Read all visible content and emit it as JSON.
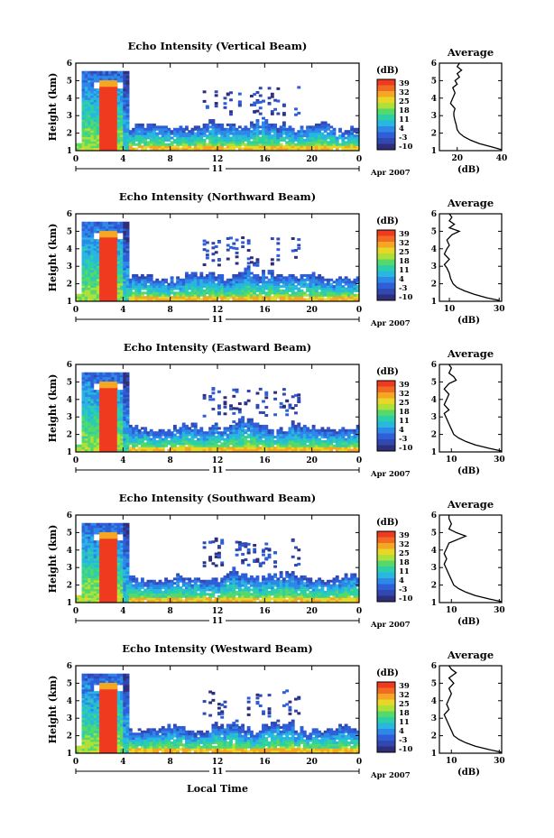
{
  "xlabel": "Local Time",
  "colorbar_unit": "(dB)",
  "colorbar_ticks": [
    "39",
    "32",
    "25",
    "18",
    "11",
    "4",
    "-3",
    "-10"
  ],
  "colorbar_colors": [
    "#f03a20",
    "#f26b22",
    "#f5a623",
    "#e8d727",
    "#aee03a",
    "#55d96a",
    "#2ccfa8",
    "#27b7e0",
    "#2e88e8",
    "#2f5fd8",
    "#3048b0",
    "#2e2e7a"
  ],
  "date_tick": "11",
  "date_label": "Apr 2007",
  "chart_data": [
    {
      "type": "heatmap",
      "title": "Echo Intensity (Vertical Beam)",
      "ylabel": "Height (km)",
      "x_ticks": [
        "0",
        "4",
        "8",
        "12",
        "16",
        "20",
        "0"
      ],
      "y_ticks": [
        "1",
        "2",
        "3",
        "4",
        "5",
        "6"
      ],
      "xlim": [
        0,
        24
      ],
      "ylim": [
        1,
        6
      ],
      "colorbar": {
        "range": [
          -10,
          39
        ]
      },
      "average_profile": {
        "title": "Average",
        "xlabel": "(dB)",
        "x_ticks": [
          "20",
          "40"
        ],
        "xlim": [
          12,
          40
        ],
        "y_ticks": [
          "1",
          "2",
          "3",
          "4",
          "5",
          "6"
        ],
        "profile": [
          [
            40,
            1.05
          ],
          [
            36,
            1.2
          ],
          [
            30,
            1.4
          ],
          [
            26,
            1.6
          ],
          [
            23,
            1.8
          ],
          [
            21,
            2.0
          ],
          [
            20,
            2.2
          ],
          [
            19.5,
            2.5
          ],
          [
            19,
            2.7
          ],
          [
            18.5,
            3.0
          ],
          [
            18.5,
            3.2
          ],
          [
            19,
            3.4
          ],
          [
            17,
            3.7
          ],
          [
            18,
            4.0
          ],
          [
            19,
            4.3
          ],
          [
            18,
            4.6
          ],
          [
            20,
            4.8
          ],
          [
            19,
            5.0
          ],
          [
            21,
            5.2
          ],
          [
            20,
            5.4
          ],
          [
            22,
            5.6
          ],
          [
            20,
            5.8
          ],
          [
            21,
            6.0
          ]
        ]
      }
    },
    {
      "type": "heatmap",
      "title": "Echo Intensity (Northward Beam)",
      "ylabel": "Height (km)",
      "x_ticks": [
        "0",
        "4",
        "8",
        "12",
        "16",
        "20",
        "0"
      ],
      "y_ticks": [
        "1",
        "2",
        "3",
        "4",
        "5",
        "6"
      ],
      "xlim": [
        0,
        24
      ],
      "ylim": [
        1,
        6
      ],
      "colorbar": {
        "range": [
          -10,
          39
        ]
      },
      "average_profile": {
        "title": "Average",
        "xlabel": "(dB)",
        "x_ticks": [
          "10",
          "30"
        ],
        "xlim": [
          6,
          31
        ],
        "y_ticks": [
          "1",
          "2",
          "3",
          "4",
          "5",
          "6"
        ],
        "profile": [
          [
            30,
            1.05
          ],
          [
            25,
            1.2
          ],
          [
            20,
            1.4
          ],
          [
            16,
            1.6
          ],
          [
            13,
            1.8
          ],
          [
            11.5,
            2.0
          ],
          [
            10.5,
            2.3
          ],
          [
            10,
            2.6
          ],
          [
            9,
            2.9
          ],
          [
            8,
            3.1
          ],
          [
            10,
            3.4
          ],
          [
            8,
            3.7
          ],
          [
            9,
            4.0
          ],
          [
            10,
            4.2
          ],
          [
            9,
            4.5
          ],
          [
            11,
            4.8
          ],
          [
            14,
            5.0
          ],
          [
            10,
            5.2
          ],
          [
            12,
            5.4
          ],
          [
            10,
            5.6
          ],
          [
            11,
            5.8
          ],
          [
            10,
            6.0
          ]
        ]
      }
    },
    {
      "type": "heatmap",
      "title": "Echo Intensity (Eastward Beam)",
      "ylabel": "Height (km)",
      "x_ticks": [
        "0",
        "4",
        "8",
        "12",
        "16",
        "20",
        "0"
      ],
      "y_ticks": [
        "1",
        "2",
        "3",
        "4",
        "5",
        "6"
      ],
      "xlim": [
        0,
        24
      ],
      "ylim": [
        1,
        6
      ],
      "colorbar": {
        "range": [
          -10,
          39
        ]
      },
      "average_profile": {
        "title": "Average",
        "xlabel": "(dB)",
        "x_ticks": [
          "10",
          "30"
        ],
        "xlim": [
          5,
          31
        ],
        "y_ticks": [
          "1",
          "2",
          "3",
          "4",
          "5",
          "6"
        ],
        "profile": [
          [
            31,
            1.05
          ],
          [
            26,
            1.2
          ],
          [
            20,
            1.4
          ],
          [
            16,
            1.6
          ],
          [
            13,
            1.8
          ],
          [
            11,
            2.0
          ],
          [
            10,
            2.3
          ],
          [
            9,
            2.6
          ],
          [
            8,
            2.9
          ],
          [
            7,
            3.2
          ],
          [
            9,
            3.4
          ],
          [
            7,
            3.7
          ],
          [
            8,
            4.0
          ],
          [
            9,
            4.3
          ],
          [
            7,
            4.6
          ],
          [
            9,
            4.9
          ],
          [
            12,
            5.1
          ],
          [
            11,
            5.3
          ],
          [
            9,
            5.5
          ],
          [
            10,
            5.8
          ],
          [
            9,
            6.0
          ]
        ]
      }
    },
    {
      "type": "heatmap",
      "title": "Echo Intensity (Southward Beam)",
      "ylabel": "Height (km)",
      "x_ticks": [
        "0",
        "4",
        "8",
        "12",
        "16",
        "20",
        "0"
      ],
      "y_ticks": [
        "1",
        "2",
        "3",
        "4",
        "5",
        "6"
      ],
      "xlim": [
        0,
        24
      ],
      "ylim": [
        1,
        6
      ],
      "colorbar": {
        "range": [
          -10,
          39
        ]
      },
      "average_profile": {
        "title": "Average",
        "xlabel": "(dB)",
        "x_ticks": [
          "10",
          "30"
        ],
        "xlim": [
          5,
          31
        ],
        "y_ticks": [
          "1",
          "2",
          "3",
          "4",
          "5",
          "6"
        ],
        "profile": [
          [
            31,
            1.05
          ],
          [
            26,
            1.2
          ],
          [
            20,
            1.4
          ],
          [
            16,
            1.6
          ],
          [
            13,
            1.8
          ],
          [
            11,
            2.0
          ],
          [
            10,
            2.3
          ],
          [
            9,
            2.6
          ],
          [
            8,
            2.9
          ],
          [
            7,
            3.2
          ],
          [
            8,
            3.5
          ],
          [
            7,
            3.8
          ],
          [
            8,
            4.1
          ],
          [
            9,
            4.4
          ],
          [
            16,
            4.8
          ],
          [
            12,
            5.0
          ],
          [
            9,
            5.2
          ],
          [
            10,
            5.5
          ],
          [
            9,
            5.8
          ],
          [
            9,
            6.0
          ]
        ]
      }
    },
    {
      "type": "heatmap",
      "title": "Echo Intensity (Westward Beam)",
      "ylabel": "Height (km)",
      "x_ticks": [
        "0",
        "4",
        "8",
        "12",
        "16",
        "20",
        "0"
      ],
      "y_ticks": [
        "1",
        "2",
        "3",
        "4",
        "5",
        "6"
      ],
      "xlim": [
        0,
        24
      ],
      "ylim": [
        1,
        6
      ],
      "colorbar": {
        "range": [
          -10,
          39
        ]
      },
      "average_profile": {
        "title": "Average",
        "xlabel": "(dB)",
        "x_ticks": [
          "10",
          "30"
        ],
        "xlim": [
          5,
          31
        ],
        "y_ticks": [
          "1",
          "2",
          "3",
          "4",
          "5",
          "6"
        ],
        "profile": [
          [
            31,
            1.05
          ],
          [
            26,
            1.2
          ],
          [
            20,
            1.4
          ],
          [
            16,
            1.6
          ],
          [
            13,
            1.8
          ],
          [
            11,
            2.0
          ],
          [
            10,
            2.3
          ],
          [
            9,
            2.6
          ],
          [
            8,
            2.9
          ],
          [
            7,
            3.2
          ],
          [
            9,
            3.5
          ],
          [
            8,
            3.8
          ],
          [
            9,
            4.1
          ],
          [
            10,
            4.4
          ],
          [
            9,
            4.7
          ],
          [
            11,
            5.0
          ],
          [
            9,
            5.3
          ],
          [
            12,
            5.6
          ],
          [
            10,
            5.8
          ],
          [
            9,
            6.0
          ]
        ]
      }
    }
  ]
}
